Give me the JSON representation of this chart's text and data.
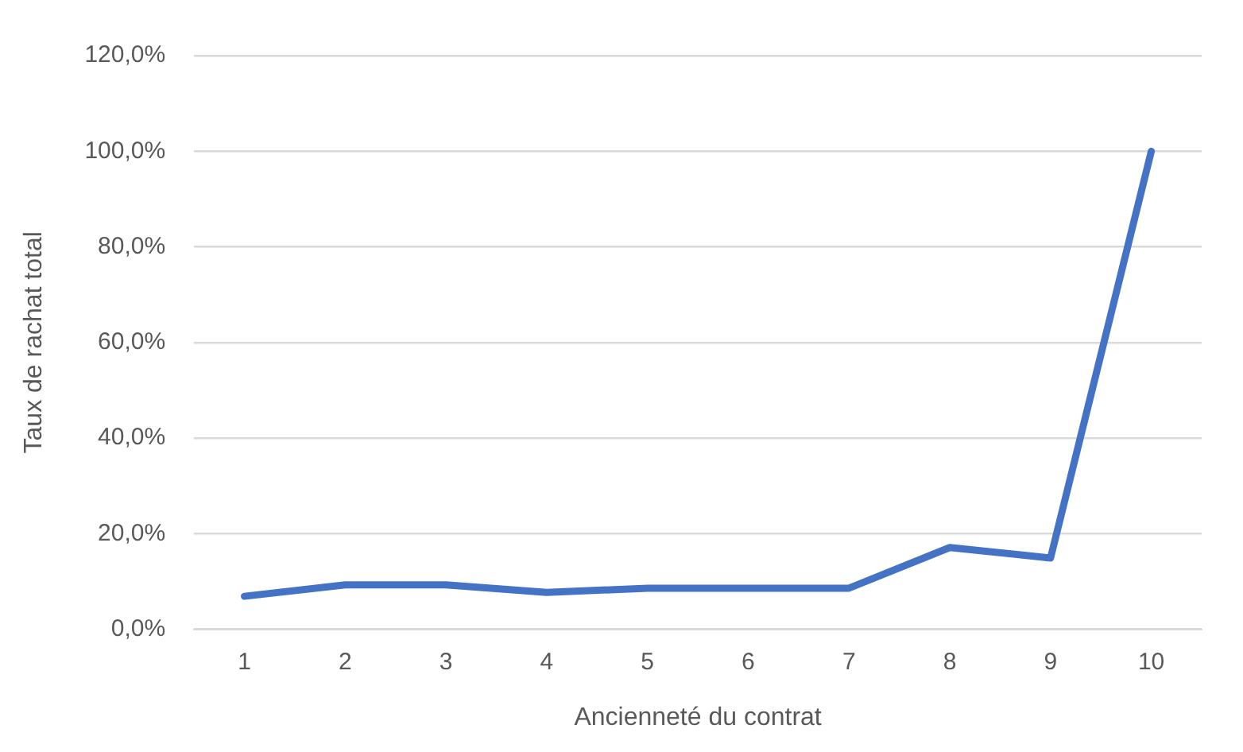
{
  "chart_data": {
    "type": "line",
    "xlabel": "Ancienneté du contrat",
    "ylabel": "Taux de rachat total",
    "categories": [
      "1",
      "2",
      "3",
      "4",
      "5",
      "6",
      "7",
      "8",
      "9",
      "10"
    ],
    "series": [
      {
        "color": "#4472c4",
        "values": [
          6.9,
          9.3,
          9.3,
          7.7,
          8.6,
          8.6,
          8.6,
          17.1,
          14.9,
          100
        ]
      }
    ],
    "ylim": [
      0,
      120
    ],
    "yticks": [
      {
        "value": 0,
        "label": "0,0%"
      },
      {
        "value": 20,
        "label": "20,0%"
      },
      {
        "value": 40,
        "label": "40,0%"
      },
      {
        "value": 60,
        "label": "60,0%"
      },
      {
        "value": 80,
        "label": "80,0%"
      },
      {
        "value": 100,
        "label": "100,0%"
      },
      {
        "value": 120,
        "label": "120,0%"
      }
    ],
    "grid": "y",
    "legend": false,
    "marker": "none",
    "line_style": "solid"
  }
}
